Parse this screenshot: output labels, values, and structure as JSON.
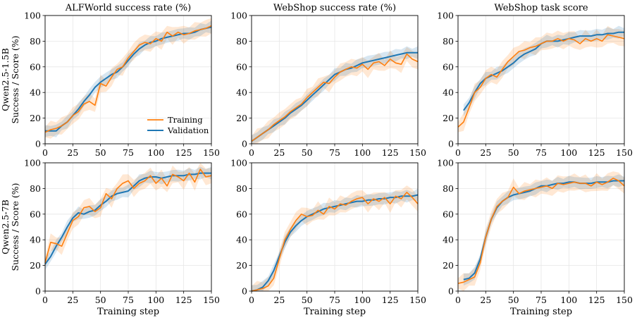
{
  "figure": {
    "row_labels": [
      [
        "Qwen2.5-1.5B",
        "Success / Score (%)"
      ],
      [
        "Qwen2.5-7B",
        "Success / Score (%)"
      ]
    ],
    "xlabel": "Training step",
    "legend": {
      "items": [
        "Training",
        "Validation"
      ],
      "placement": "lower-right of top-left panel"
    },
    "colors": {
      "training": "#ff7f0e",
      "validation": "#1f77b4",
      "grid": "#e6e6e6"
    }
  },
  "chart_data": [
    {
      "type": "line",
      "row": 0,
      "col": 0,
      "title": "ALFWorld success rate (%)",
      "xlim": [
        0,
        150
      ],
      "ylim": [
        0,
        100
      ],
      "xticks": [
        0,
        25,
        50,
        75,
        100,
        125,
        150
      ],
      "yticks": [
        0,
        20,
        40,
        60,
        80,
        100
      ],
      "grid": true,
      "band": "shaded variability around each series",
      "series": [
        {
          "name": "Training",
          "x": [
            0,
            5,
            10,
            15,
            20,
            25,
            30,
            35,
            40,
            45,
            50,
            55,
            60,
            65,
            70,
            75,
            80,
            85,
            90,
            95,
            100,
            105,
            110,
            115,
            120,
            125,
            130,
            135,
            140,
            145,
            150
          ],
          "values": [
            9,
            11,
            12,
            14,
            17,
            22,
            25,
            31,
            33,
            30,
            47,
            45,
            52,
            58,
            60,
            67,
            72,
            77,
            79,
            78,
            82,
            80,
            87,
            84,
            87,
            85,
            86,
            88,
            89,
            90,
            92
          ]
        },
        {
          "name": "Validation",
          "x": [
            0,
            5,
            10,
            15,
            20,
            25,
            30,
            35,
            40,
            45,
            50,
            55,
            60,
            65,
            70,
            75,
            80,
            85,
            90,
            95,
            100,
            105,
            110,
            115,
            120,
            125,
            130,
            135,
            140,
            145,
            150
          ],
          "values": [
            10,
            10,
            10,
            14,
            17,
            22,
            27,
            33,
            38,
            44,
            48,
            51,
            54,
            56,
            60,
            65,
            70,
            74,
            77,
            79,
            80,
            82,
            83,
            84,
            85,
            86,
            86,
            87,
            89,
            90,
            91
          ]
        }
      ]
    },
    {
      "type": "line",
      "row": 0,
      "col": 1,
      "title": "WebShop success rate (%)",
      "xlim": [
        0,
        150
      ],
      "ylim": [
        0,
        100
      ],
      "xticks": [
        0,
        25,
        50,
        75,
        100,
        125,
        150
      ],
      "yticks": [
        0,
        20,
        40,
        60,
        80,
        100
      ],
      "grid": true,
      "band": "shaded variability around each series",
      "series": [
        {
          "name": "Training",
          "x": [
            0,
            5,
            10,
            15,
            20,
            25,
            30,
            35,
            40,
            45,
            50,
            55,
            60,
            65,
            70,
            75,
            80,
            85,
            90,
            95,
            100,
            105,
            110,
            115,
            120,
            125,
            130,
            135,
            140,
            145,
            150
          ],
          "values": [
            2,
            5,
            8,
            11,
            15,
            18,
            21,
            25,
            28,
            31,
            36,
            40,
            44,
            48,
            47,
            52,
            56,
            58,
            60,
            59,
            62,
            58,
            63,
            64,
            61,
            66,
            63,
            62,
            70,
            66,
            64
          ]
        },
        {
          "name": "Validation",
          "x": [
            0,
            5,
            10,
            15,
            20,
            25,
            30,
            35,
            40,
            45,
            50,
            55,
            60,
            65,
            70,
            75,
            80,
            85,
            90,
            95,
            100,
            105,
            110,
            115,
            120,
            125,
            130,
            135,
            140,
            145,
            150
          ],
          "values": [
            2,
            5,
            8,
            11,
            14,
            17,
            20,
            24,
            27,
            30,
            34,
            38,
            42,
            46,
            50,
            54,
            56,
            58,
            59,
            61,
            63,
            64,
            65,
            66,
            67,
            68,
            69,
            70,
            71,
            71,
            71
          ]
        }
      ]
    },
    {
      "type": "line",
      "row": 0,
      "col": 2,
      "title": "WebShop task score",
      "xlim": [
        0,
        150
      ],
      "ylim": [
        0,
        100
      ],
      "xticks": [
        0,
        25,
        50,
        75,
        100,
        125,
        150
      ],
      "yticks": [
        0,
        20,
        40,
        60,
        80,
        100
      ],
      "grid": true,
      "band": "shaded variability around each series",
      "series": [
        {
          "name": "Training",
          "x": [
            0,
            5,
            10,
            15,
            20,
            25,
            30,
            35,
            40,
            45,
            50,
            55,
            60,
            65,
            70,
            75,
            80,
            85,
            90,
            95,
            100,
            105,
            110,
            115,
            120,
            125,
            130,
            135,
            140,
            145,
            150
          ],
          "values": [
            13,
            17,
            28,
            40,
            44,
            51,
            54,
            52,
            58,
            64,
            68,
            72,
            73,
            75,
            76,
            78,
            80,
            80,
            82,
            80,
            82,
            81,
            78,
            82,
            80,
            82,
            80,
            85,
            84,
            83,
            82
          ]
        },
        {
          "name": "Validation",
          "x": [
            5,
            10,
            15,
            20,
            25,
            30,
            35,
            40,
            45,
            50,
            55,
            60,
            65,
            70,
            75,
            80,
            85,
            90,
            95,
            100,
            105,
            110,
            115,
            120,
            125,
            130,
            135,
            140,
            145,
            150
          ],
          "values": [
            26,
            32,
            40,
            47,
            51,
            53,
            55,
            57,
            60,
            63,
            67,
            70,
            72,
            74,
            78,
            80,
            80,
            80,
            81,
            82,
            83,
            84,
            84,
            84,
            85,
            85,
            86,
            86,
            87,
            87
          ]
        }
      ]
    },
    {
      "type": "line",
      "row": 1,
      "col": 0,
      "title": "",
      "xlim": [
        0,
        150
      ],
      "ylim": [
        0,
        100
      ],
      "xticks": [
        0,
        25,
        50,
        75,
        100,
        125,
        150
      ],
      "yticks": [
        0,
        20,
        40,
        60,
        80,
        100
      ],
      "grid": true,
      "band": "shaded variability around each series",
      "series": [
        {
          "name": "Training",
          "x": [
            0,
            5,
            10,
            15,
            20,
            25,
            30,
            35,
            40,
            45,
            50,
            55,
            60,
            65,
            70,
            75,
            80,
            85,
            90,
            95,
            100,
            105,
            110,
            115,
            120,
            125,
            130,
            135,
            140,
            145,
            150
          ],
          "values": [
            22,
            38,
            37,
            35,
            45,
            55,
            58,
            65,
            66,
            62,
            65,
            76,
            72,
            80,
            84,
            86,
            80,
            84,
            86,
            90,
            84,
            88,
            82,
            91,
            89,
            86,
            92,
            85,
            95,
            89,
            90
          ]
        },
        {
          "name": "Validation",
          "x": [
            0,
            5,
            10,
            15,
            20,
            25,
            30,
            35,
            40,
            45,
            50,
            55,
            60,
            65,
            70,
            75,
            80,
            85,
            90,
            95,
            100,
            105,
            110,
            115,
            120,
            125,
            130,
            135,
            140,
            145,
            150
          ],
          "values": [
            21,
            27,
            35,
            42,
            50,
            57,
            61,
            60,
            62,
            63,
            67,
            70,
            74,
            76,
            77,
            78,
            82,
            86,
            88,
            89,
            89,
            88,
            89,
            90,
            90,
            90,
            91,
            91,
            92,
            92,
            92
          ]
        }
      ]
    },
    {
      "type": "line",
      "row": 1,
      "col": 1,
      "title": "",
      "xlim": [
        0,
        150
      ],
      "ylim": [
        0,
        100
      ],
      "xticks": [
        0,
        25,
        50,
        75,
        100,
        125,
        150
      ],
      "yticks": [
        0,
        20,
        40,
        60,
        80,
        100
      ],
      "grid": true,
      "band": "shaded variability around each series",
      "series": [
        {
          "name": "Training",
          "x": [
            0,
            5,
            10,
            15,
            20,
            25,
            30,
            35,
            40,
            45,
            50,
            55,
            60,
            65,
            70,
            75,
            80,
            85,
            90,
            95,
            100,
            105,
            110,
            115,
            120,
            125,
            130,
            135,
            140,
            145,
            150
          ],
          "values": [
            0,
            1,
            2,
            4,
            10,
            25,
            40,
            48,
            55,
            60,
            58,
            59,
            63,
            60,
            66,
            64,
            68,
            67,
            70,
            72,
            73,
            68,
            72,
            70,
            73,
            68,
            74,
            72,
            77,
            73,
            68
          ]
        },
        {
          "name": "Validation",
          "x": [
            0,
            5,
            10,
            15,
            20,
            25,
            30,
            35,
            40,
            45,
            50,
            55,
            60,
            65,
            70,
            75,
            80,
            85,
            90,
            95,
            100,
            105,
            110,
            115,
            120,
            125,
            130,
            135,
            140,
            145,
            150
          ],
          "values": [
            0,
            1,
            3,
            8,
            16,
            27,
            38,
            46,
            51,
            55,
            58,
            60,
            62,
            64,
            65,
            66,
            67,
            68,
            69,
            70,
            70,
            71,
            71,
            72,
            72,
            73,
            73,
            74,
            74,
            74,
            75
          ]
        }
      ]
    },
    {
      "type": "line",
      "row": 1,
      "col": 2,
      "title": "",
      "xlim": [
        0,
        150
      ],
      "ylim": [
        0,
        100
      ],
      "xticks": [
        0,
        25,
        50,
        75,
        100,
        125,
        150
      ],
      "yticks": [
        0,
        20,
        40,
        60,
        80,
        100
      ],
      "grid": true,
      "band": "shaded variability around each series",
      "series": [
        {
          "name": "Training",
          "x": [
            0,
            5,
            10,
            15,
            20,
            25,
            30,
            35,
            40,
            45,
            50,
            55,
            60,
            65,
            70,
            75,
            80,
            85,
            90,
            95,
            100,
            105,
            110,
            115,
            120,
            125,
            130,
            135,
            140,
            145,
            150
          ],
          "values": [
            6,
            7,
            9,
            11,
            22,
            42,
            56,
            66,
            70,
            73,
            81,
            76,
            78,
            79,
            80,
            81,
            82,
            80,
            84,
            83,
            84,
            85,
            84,
            84,
            82,
            85,
            83,
            85,
            88,
            86,
            82
          ]
        },
        {
          "name": "Validation",
          "x": [
            5,
            10,
            15,
            20,
            25,
            30,
            35,
            40,
            45,
            50,
            55,
            60,
            65,
            70,
            75,
            80,
            85,
            90,
            95,
            100,
            105,
            110,
            115,
            120,
            125,
            130,
            135,
            140,
            145,
            150
          ],
          "values": [
            9,
            10,
            14,
            25,
            42,
            56,
            65,
            70,
            73,
            75,
            76,
            77,
            78,
            80,
            82,
            82,
            83,
            84,
            84,
            85,
            85,
            84,
            84,
            84,
            85,
            85,
            85,
            86,
            86,
            86
          ]
        }
      ]
    }
  ]
}
